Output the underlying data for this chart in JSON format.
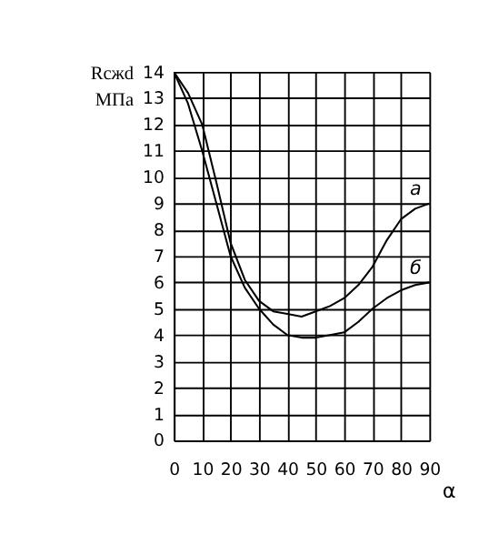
{
  "chart_data": {
    "type": "line",
    "xlabel": "α",
    "ylabel": "Rсжd МПа",
    "xlim": [
      0,
      90
    ],
    "ylim": [
      0,
      14
    ],
    "xticks": [
      0,
      10,
      20,
      30,
      40,
      50,
      60,
      70,
      80,
      90
    ],
    "yticks": [
      0,
      1,
      2,
      3,
      4,
      5,
      6,
      7,
      8,
      9,
      10,
      11,
      12,
      13,
      14
    ],
    "grid": true,
    "legend": false,
    "marker": "none",
    "line_style": "solid",
    "series": [
      {
        "name": "а",
        "color": "#000000",
        "x": [
          0,
          5,
          10,
          15,
          20,
          25,
          30,
          35,
          40,
          45,
          50,
          55,
          60,
          65,
          70,
          75,
          80,
          85,
          90
        ],
        "values": [
          14,
          13.2,
          12,
          9.8,
          7.5,
          6.1,
          5.3,
          4.9,
          4.8,
          4.7,
          4.9,
          5.1,
          5.4,
          5.9,
          6.6,
          7.6,
          8.4,
          8.8,
          9
        ]
      },
      {
        "name": "б",
        "color": "#000000",
        "x": [
          0,
          5,
          10,
          15,
          20,
          25,
          30,
          35,
          40,
          45,
          50,
          55,
          60,
          65,
          70,
          75,
          80,
          85,
          90
        ],
        "values": [
          14,
          12.8,
          11,
          9,
          7,
          5.8,
          5,
          4.4,
          4,
          3.9,
          3.9,
          4,
          4.1,
          4.5,
          5,
          5.4,
          5.7,
          5.9,
          6
        ]
      }
    ]
  }
}
